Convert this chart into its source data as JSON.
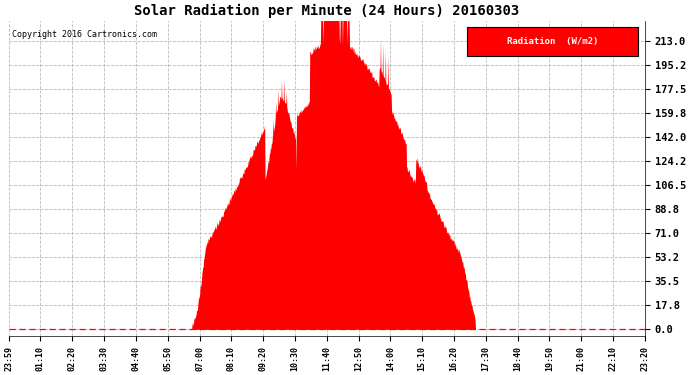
{
  "title": "Solar Radiation per Minute (24 Hours) 20160303",
  "copyright": "Copyright 2016 Cartronics.com",
  "fill_color": "#FF0000",
  "background_color": "#FFFFFF",
  "dashed_line_color": "#FF0000",
  "yticks": [
    0.0,
    17.8,
    35.5,
    53.2,
    71.0,
    88.8,
    106.5,
    124.2,
    142.0,
    159.8,
    177.5,
    195.2,
    213.0
  ],
  "xtick_labels": [
    "23:59",
    "01:10",
    "02:20",
    "03:30",
    "04:40",
    "05:50",
    "07:00",
    "08:10",
    "09:20",
    "10:30",
    "11:40",
    "12:50",
    "14:00",
    "15:10",
    "16:20",
    "17:30",
    "18:40",
    "19:50",
    "21:00",
    "22:10",
    "23:20"
  ],
  "legend_label": "Radiation  (W/m2)",
  "legend_bg": "#FF0000",
  "legend_text_color": "#FFFFFF",
  "sunrise_min": 415,
  "sunset_min": 1055,
  "peak_min": 735,
  "peak_val": 213.0
}
